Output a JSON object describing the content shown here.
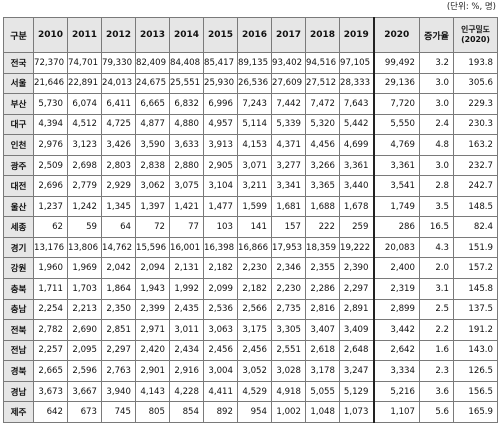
{
  "unit_note": "(단위: %, 명)",
  "headers": [
    "구분",
    "2010",
    "2011",
    "2012",
    "2013",
    "2014",
    "2015",
    "2016",
    "2017",
    "2018",
    "2019",
    "2020",
    "증가율",
    "인구밀도 (2020)"
  ],
  "rows": [
    [
      "전국",
      "72,370",
      "74,701",
      "79,330",
      "82,409",
      "84,408",
      "85,417",
      "89,135",
      "93,402",
      "94,516",
      "97,105",
      "99,492",
      "3.2",
      "193.8"
    ],
    [
      "서울",
      "21,646",
      "22,891",
      "24,013",
      "24,675",
      "25,551",
      "25,930",
      "26,536",
      "27,609",
      "27,512",
      "28,333",
      "29,136",
      "3.0",
      "305.6"
    ],
    [
      "부산",
      "5,730",
      "6,074",
      "6,411",
      "6,665",
      "6,832",
      "6,996",
      "7,243",
      "7,442",
      "7,472",
      "7,643",
      "7,720",
      "3.0",
      "229.3"
    ],
    [
      "대구",
      "4,394",
      "4,512",
      "4,725",
      "4,877",
      "4,880",
      "4,957",
      "5,114",
      "5,339",
      "5,320",
      "5,442",
      "5,550",
      "2.4",
      "230.3"
    ],
    [
      "인천",
      "2,976",
      "3,123",
      "3,426",
      "3,590",
      "3,633",
      "3,913",
      "4,153",
      "4,371",
      "4,456",
      "4,699",
      "4,769",
      "4.8",
      "163.2"
    ],
    [
      "광주",
      "2,509",
      "2,698",
      "2,803",
      "2,838",
      "2,880",
      "2,905",
      "3,071",
      "3,277",
      "3,266",
      "3,361",
      "3,361",
      "3.0",
      "232.7"
    ],
    [
      "대전",
      "2,696",
      "2,779",
      "2,929",
      "3,062",
      "3,075",
      "3,104",
      "3,211",
      "3,341",
      "3,365",
      "3,440",
      "3,541",
      "2.8",
      "242.7"
    ],
    [
      "울산",
      "1,237",
      "1,242",
      "1,345",
      "1,397",
      "1,421",
      "1,477",
      "1,599",
      "1,681",
      "1,688",
      "1,678",
      "1,749",
      "3.5",
      "148.5"
    ],
    [
      "세종",
      "62",
      "59",
      "64",
      "72",
      "77",
      "103",
      "141",
      "157",
      "222",
      "259",
      "286",
      "16.5",
      "82.4"
    ],
    [
      "경기",
      "13,176",
      "13,806",
      "14,762",
      "15,596",
      "16,001",
      "16,398",
      "16,866",
      "17,953",
      "18,359",
      "19,222",
      "20,083",
      "4.3",
      "151.9"
    ],
    [
      "강원",
      "1,960",
      "1,969",
      "2,042",
      "2,094",
      "2,131",
      "2,182",
      "2,230",
      "2,346",
      "2,355",
      "2,390",
      "2,400",
      "2.0",
      "157.2"
    ],
    [
      "충북",
      "1,711",
      "1,703",
      "1,864",
      "1,943",
      "1,992",
      "2,099",
      "2,182",
      "2,230",
      "2,286",
      "2,297",
      "2,319",
      "3.1",
      "145.8"
    ],
    [
      "충남",
      "2,254",
      "2,213",
      "2,350",
      "2,399",
      "2,435",
      "2,536",
      "2,566",
      "2,735",
      "2,816",
      "2,891",
      "2,899",
      "2.5",
      "137.5"
    ],
    [
      "전북",
      "2,782",
      "2,690",
      "2,851",
      "2,971",
      "3,011",
      "3,063",
      "3,175",
      "3,305",
      "3,407",
      "3,409",
      "3,442",
      "2.2",
      "191.2"
    ],
    [
      "전남",
      "2,257",
      "2,095",
      "2,297",
      "2,420",
      "2,434",
      "2,456",
      "2,456",
      "2,551",
      "2,618",
      "2,648",
      "2,642",
      "1.6",
      "143.0"
    ],
    [
      "경북",
      "2,665",
      "2,596",
      "2,763",
      "2,901",
      "2,916",
      "3,004",
      "3,052",
      "3,028",
      "3,178",
      "3,247",
      "3,334",
      "2.3",
      "126.5"
    ],
    [
      "경남",
      "3,673",
      "3,667",
      "3,940",
      "4,143",
      "4,228",
      "4,411",
      "4,529",
      "4,918",
      "5,055",
      "5,129",
      "5,216",
      "3.6",
      "156.5"
    ],
    [
      "제주",
      "642",
      "673",
      "745",
      "805",
      "854",
      "892",
      "954",
      "1,002",
      "1,048",
      "1,073",
      "1,107",
      "5.6",
      "165.9"
    ]
  ]
}
